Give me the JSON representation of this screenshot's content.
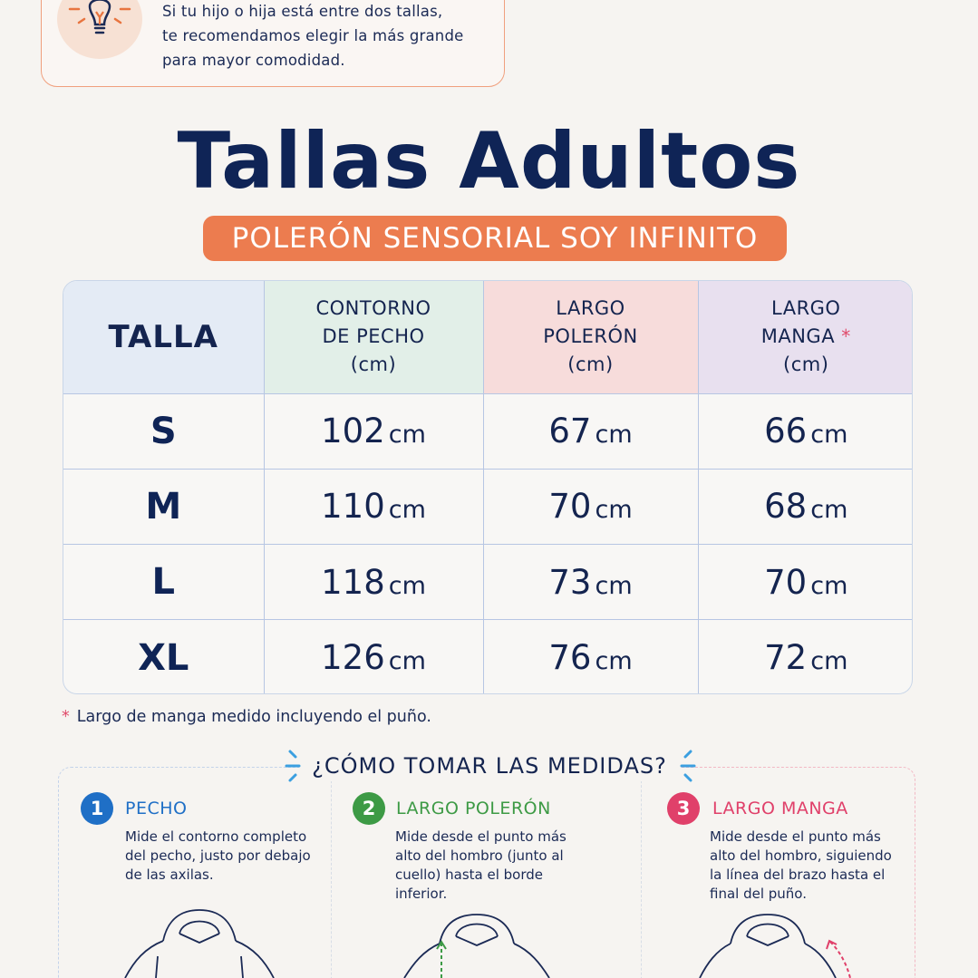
{
  "tip": {
    "lines": [
      "Si tu hijo o hija está entre dos tallas,",
      "te recomendamos elegir la más grande",
      "para mayor comodidad."
    ],
    "icon": "lightbulb-icon"
  },
  "title": "Tallas Adultos",
  "subtitle": "POLERÓN SENSORIAL SOY INFINITO",
  "table": {
    "headers": {
      "size": "TALLA",
      "chest": [
        "CONTORNO",
        "DE PECHO",
        "(cm)"
      ],
      "length": [
        "LARGO",
        "POLERÓN",
        "(cm)"
      ],
      "sleeve": [
        "LARGO",
        "MANGA",
        "(cm)"
      ],
      "sleeve_mark": "*"
    },
    "unit": "cm",
    "rows": [
      {
        "size": "S",
        "chest": "102",
        "length": "67",
        "sleeve": "66"
      },
      {
        "size": "M",
        "chest": "110",
        "length": "70",
        "sleeve": "68"
      },
      {
        "size": "L",
        "chest": "118",
        "length": "73",
        "sleeve": "70"
      },
      {
        "size": "XL",
        "chest": "126",
        "length": "76",
        "sleeve": "72"
      }
    ]
  },
  "footnote": {
    "mark": "*",
    "text": "Largo de manga medido incluyendo el puño."
  },
  "how": {
    "title": "¿CÓMO TOMAR LAS MEDIDAS?",
    "steps": [
      {
        "num": "1",
        "title": "PECHO",
        "color": "#1f6fc6",
        "desc": [
          "Mide el contorno completo",
          "del pecho, justo por debajo",
          "de las axilas."
        ]
      },
      {
        "num": "2",
        "title": "LARGO POLERÓN",
        "color": "#3d9a45",
        "desc": [
          "Mide desde el punto más",
          "alto del hombro (junto al",
          "cuello) hasta el borde",
          "inferior."
        ]
      },
      {
        "num": "3",
        "title": "LARGO MANGA",
        "color": "#e0406a",
        "desc": [
          "Mide desde el punto más",
          "alto del hombro, siguiendo",
          "la línea del brazo hasta el",
          "final del puño."
        ]
      }
    ]
  },
  "colors": {
    "navy": "#0f2456",
    "orange": "#ec7c4f",
    "blue": "#1f6fc6",
    "green": "#3d9a45",
    "pink": "#e0406a"
  }
}
